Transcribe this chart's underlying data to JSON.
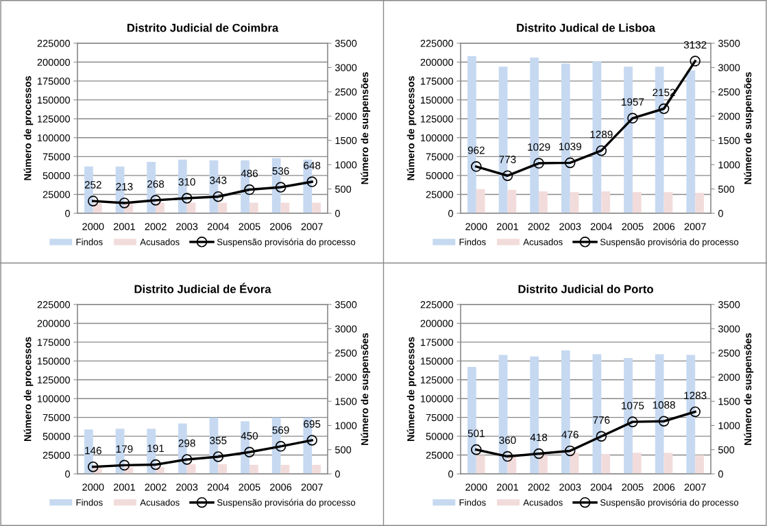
{
  "chart_data": [
    {
      "type": "bar",
      "title": "Distrito Judicial de Coimbra",
      "ylabel": "Número de processos",
      "y2label": "Número de suspensões",
      "categories": [
        "2000",
        "2001",
        "2002",
        "2003",
        "2004",
        "2005",
        "2006",
        "2007"
      ],
      "ylim": [
        0,
        225000
      ],
      "yticks": [
        0,
        25000,
        50000,
        75000,
        100000,
        125000,
        150000,
        175000,
        200000,
        225000
      ],
      "y2lim": [
        0,
        3500
      ],
      "y2ticks": [
        0,
        500,
        1000,
        1500,
        2000,
        2500,
        3000,
        3500
      ],
      "grid": "y",
      "legend": "bottom",
      "series": [
        {
          "name": "Findos",
          "color": "#c6d9f1",
          "values": [
            62000,
            62000,
            68000,
            71000,
            70000,
            70000,
            73000,
            71000
          ]
        },
        {
          "name": "Acusados",
          "color": "#f2dcdb",
          "values": [
            13000,
            13000,
            14000,
            14000,
            14000,
            14000,
            14000,
            14000
          ]
        },
        {
          "name": "Suspensão provisória do processo",
          "type": "line",
          "axis": "y2",
          "color": "#000000",
          "marker": "circle",
          "values": [
            252,
            213,
            268,
            310,
            343,
            486,
            536,
            648
          ],
          "value_labels": [
            "252",
            "213",
            "268",
            "310",
            "343",
            "486",
            "536",
            "648"
          ]
        }
      ]
    },
    {
      "type": "bar",
      "title": "Distrito Judical de Lisboa",
      "ylabel": "Número de processos",
      "y2label": "Número de suspensões",
      "categories": [
        "2000",
        "2001",
        "2002",
        "2003",
        "2004",
        "2005",
        "2006",
        "2007"
      ],
      "ylim": [
        0,
        225000
      ],
      "yticks": [
        0,
        25000,
        50000,
        75000,
        100000,
        125000,
        150000,
        175000,
        200000,
        225000
      ],
      "y2lim": [
        0,
        3500
      ],
      "y2ticks": [
        0,
        500,
        1000,
        1500,
        2000,
        2500,
        3000,
        3500
      ],
      "grid": "y",
      "legend": "bottom",
      "series": [
        {
          "name": "Findos",
          "color": "#c6d9f1",
          "values": [
            208000,
            194000,
            206000,
            198000,
            201000,
            194000,
            194000,
            189000
          ]
        },
        {
          "name": "Acusados",
          "color": "#f2dcdb",
          "values": [
            32000,
            31000,
            29000,
            28000,
            29000,
            28000,
            28000,
            27000
          ]
        },
        {
          "name": "Suspensão provisória do processo",
          "type": "line",
          "axis": "y2",
          "color": "#000000",
          "marker": "circle",
          "values": [
            962,
            773,
            1029,
            1039,
            1289,
            1957,
            2152,
            3132
          ],
          "value_labels": [
            "962",
            "773",
            "1029",
            "1039",
            "1289",
            "1957",
            "2152",
            "3132"
          ]
        }
      ]
    },
    {
      "type": "bar",
      "title": "Distrito Judicial de Évora",
      "ylabel": "Número de processos",
      "y2label": "Número de suspensões",
      "categories": [
        "2000",
        "2001",
        "2002",
        "2003",
        "2004",
        "2005",
        "2006",
        "2007"
      ],
      "ylim": [
        0,
        225000
      ],
      "yticks": [
        0,
        25000,
        50000,
        75000,
        100000,
        125000,
        150000,
        175000,
        200000,
        225000
      ],
      "y2lim": [
        0,
        3500
      ],
      "y2ticks": [
        0,
        500,
        1000,
        1500,
        2000,
        2500,
        3000,
        3500
      ],
      "grid": "y",
      "legend": "bottom",
      "series": [
        {
          "name": "Findos",
          "color": "#c6d9f1",
          "values": [
            59000,
            60000,
            60000,
            67000,
            75000,
            70000,
            75000,
            75000
          ]
        },
        {
          "name": "Acusados",
          "color": "#f2dcdb",
          "values": [
            9000,
            9000,
            9000,
            13000,
            13000,
            12000,
            12000,
            12000
          ]
        },
        {
          "name": "Suspensão provisória do processo",
          "type": "line",
          "axis": "y2",
          "color": "#000000",
          "marker": "circle",
          "values": [
            146,
            179,
            191,
            298,
            355,
            450,
            569,
            695
          ],
          "value_labels": [
            "146",
            "179",
            "191",
            "298",
            "355",
            "450",
            "569",
            "695"
          ]
        }
      ]
    },
    {
      "type": "bar",
      "title": "Distrito Judicial do Porto",
      "ylabel": "Número de processos",
      "y2label": "Número de suspensões",
      "categories": [
        "2000",
        "2001",
        "2002",
        "2003",
        "2004",
        "2005",
        "2006",
        "2007"
      ],
      "ylim": [
        0,
        225000
      ],
      "yticks": [
        0,
        25000,
        50000,
        75000,
        100000,
        125000,
        150000,
        175000,
        200000,
        225000
      ],
      "y2lim": [
        0,
        3500
      ],
      "y2ticks": [
        0,
        500,
        1000,
        1500,
        2000,
        2500,
        3000,
        3500
      ],
      "grid": "y",
      "legend": "bottom",
      "series": [
        {
          "name": "Findos",
          "color": "#c6d9f1",
          "values": [
            142000,
            158000,
            156000,
            164000,
            159000,
            154000,
            159000,
            158000
          ]
        },
        {
          "name": "Acusados",
          "color": "#f2dcdb",
          "values": [
            25000,
            24000,
            25000,
            28000,
            26000,
            28000,
            28000,
            25000
          ]
        },
        {
          "name": "Suspensão provisória do processo",
          "type": "line",
          "axis": "y2",
          "color": "#000000",
          "marker": "circle",
          "values": [
            501,
            360,
            418,
            476,
            776,
            1075,
            1088,
            1283
          ],
          "value_labels": [
            "501",
            "360",
            "418",
            "476",
            "776",
            "1075",
            "1088",
            "1283"
          ]
        }
      ]
    }
  ]
}
